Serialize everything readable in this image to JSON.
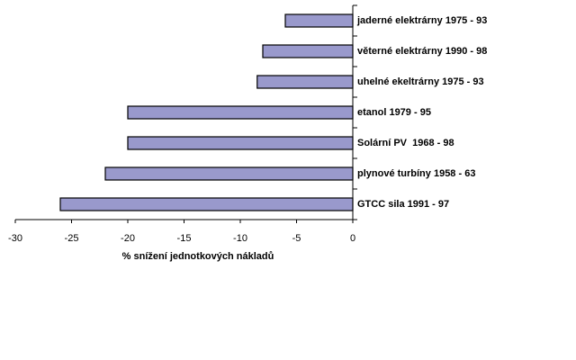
{
  "chart_data": {
    "type": "hbar",
    "categories": [
      "jaderné elektrárny 1975 - 93",
      "věterné elektrárny 1990 - 98",
      "uhelné ekeltrárny 1975 - 93",
      "etanol 1979 - 95",
      "Solární PV  1968 - 98",
      "plynové turbíny 1958 - 63",
      "GTCC sila 1991 - 97"
    ],
    "values": [
      -6,
      -8,
      -8.5,
      -20,
      -20,
      -22,
      -26
    ],
    "color": "#9999cc",
    "x_label": "% snížení jednotkových nákladů",
    "xlim": [
      -30,
      0
    ],
    "xticks": [
      -30,
      -25,
      -20,
      -15,
      -10,
      -5,
      0
    ]
  }
}
